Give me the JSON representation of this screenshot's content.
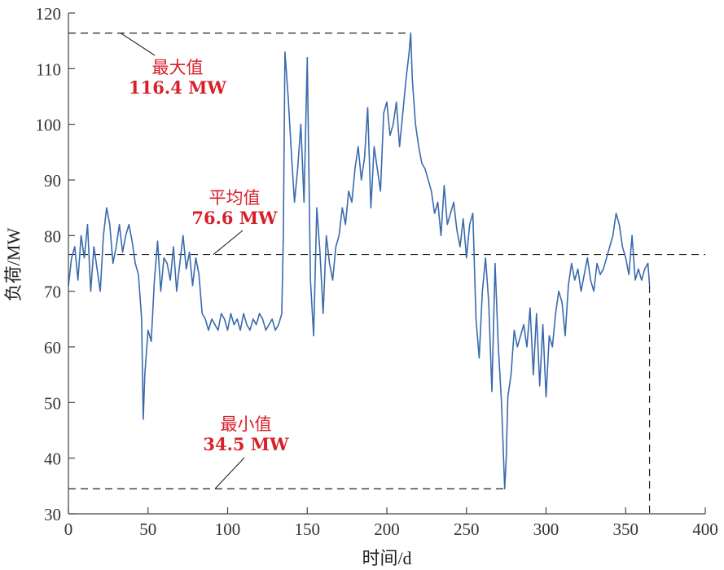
{
  "chart_data": {
    "type": "line",
    "title": "",
    "xlabel": "时间/d",
    "ylabel": "负荷/MW",
    "xlim": [
      0,
      400
    ],
    "ylim": [
      30,
      120
    ],
    "xticks": [
      0,
      50,
      100,
      150,
      200,
      250,
      300,
      350,
      400
    ],
    "yticks": [
      30,
      40,
      50,
      60,
      70,
      80,
      90,
      100,
      110,
      120
    ],
    "grid": false,
    "legend": "none",
    "colors": {
      "line": "#3a6aad",
      "annotation": "#d8202a",
      "reference": "#222222"
    },
    "series": [
      {
        "x": [
          0,
          2,
          4,
          6,
          8,
          10,
          12,
          14,
          16,
          18,
          20,
          22,
          24,
          26,
          28,
          30,
          32,
          34,
          36,
          38,
          40,
          42,
          44,
          46,
          47,
          48,
          50,
          52,
          54,
          56,
          58,
          60,
          62,
          64,
          66,
          68,
          70,
          72,
          74,
          76,
          78,
          80,
          82,
          84,
          86,
          88,
          90,
          92,
          94,
          96,
          98,
          100,
          102,
          104,
          106,
          108,
          110,
          112,
          114,
          116,
          118,
          120,
          122,
          124,
          126,
          128,
          130,
          132,
          134,
          135,
          136,
          138,
          140,
          142,
          144,
          146,
          148,
          150,
          152,
          154,
          156,
          158,
          160,
          162,
          164,
          166,
          168,
          170,
          172,
          174,
          176,
          178,
          180,
          182,
          184,
          186,
          188,
          190,
          192,
          194,
          196,
          198,
          200,
          202,
          204,
          206,
          208,
          210,
          212,
          214,
          215,
          216,
          218,
          220,
          222,
          224,
          226,
          228,
          230,
          232,
          234,
          236,
          238,
          240,
          242,
          244,
          246,
          248,
          250,
          252,
          254,
          256,
          258,
          260,
          262,
          264,
          266,
          268,
          270,
          272,
          274,
          275,
          276,
          278,
          280,
          282,
          284,
          286,
          288,
          290,
          292,
          294,
          296,
          298,
          300,
          302,
          304,
          306,
          308,
          310,
          312,
          314,
          316,
          318,
          320,
          322,
          324,
          326,
          328,
          330,
          332,
          334,
          336,
          338,
          340,
          342,
          344,
          346,
          348,
          350,
          352,
          354,
          356,
          358,
          360,
          362,
          364,
          365
        ],
        "y": [
          71,
          76,
          78,
          72,
          80,
          76,
          82,
          70,
          78,
          74,
          70,
          80,
          85,
          82,
          75,
          78,
          82,
          77,
          80,
          82,
          79,
          75,
          73,
          65,
          47,
          55,
          63,
          61,
          72,
          79,
          70,
          76,
          75,
          72,
          78,
          70,
          75,
          80,
          74,
          77,
          71,
          76,
          73,
          66,
          65,
          63,
          65,
          64,
          63,
          66,
          65,
          63,
          66,
          64,
          65,
          63,
          66,
          64,
          63,
          65,
          64,
          66,
          65,
          63,
          64,
          65,
          63,
          64,
          66,
          80,
          113,
          105,
          95,
          86,
          92,
          100,
          86,
          112,
          72,
          62,
          85,
          77,
          66,
          80,
          75,
          72,
          78,
          80,
          85,
          82,
          88,
          86,
          92,
          96,
          90,
          94,
          103,
          85,
          96,
          92,
          88,
          102,
          104,
          98,
          100,
          104,
          96,
          102,
          108,
          113,
          116.4,
          108,
          100,
          96,
          93,
          92,
          90,
          88,
          84,
          86,
          80,
          89,
          82,
          84,
          86,
          81,
          78,
          83,
          76,
          82,
          84,
          65,
          58,
          70,
          76,
          68,
          52,
          75,
          60,
          50,
          34.5,
          40,
          51,
          55,
          63,
          60,
          62,
          64,
          60,
          67,
          55,
          66,
          53,
          64,
          51,
          62,
          60,
          66,
          70,
          68,
          62,
          71,
          75,
          72,
          74,
          70,
          73,
          76,
          72,
          70,
          75,
          73,
          74,
          76,
          78,
          80,
          84,
          82,
          78,
          76,
          73,
          80,
          72,
          74,
          72,
          74,
          75,
          71
        ]
      }
    ],
    "reference_lines": [
      {
        "value": 116.4,
        "label": "最大值",
        "value_label": "116.4 MW"
      },
      {
        "value": 76.6,
        "label": "平均值",
        "value_label": "76.6 MW"
      },
      {
        "value": 34.5,
        "label": "最小值",
        "value_label": "34.5 MW"
      }
    ],
    "end_x": 365
  }
}
